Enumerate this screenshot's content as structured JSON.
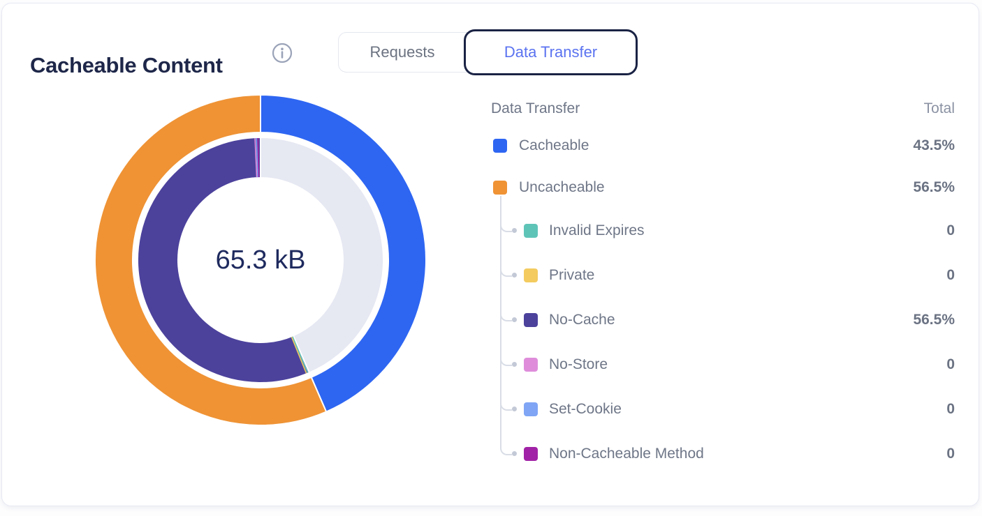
{
  "header": {
    "title": "Cacheable Content"
  },
  "tabs": [
    {
      "label": "Requests",
      "active": false
    },
    {
      "label": "Data Transfer",
      "active": true
    }
  ],
  "chart_data": {
    "type": "donut",
    "title": "Cacheable Content — Data Transfer",
    "center_label": "65.3 kB",
    "legend_position": "right",
    "rings": [
      {
        "name": "outer",
        "segments": [
          {
            "label": "Cacheable",
            "percent": 43.5,
            "color": "#2e66f2"
          },
          {
            "label": "Uncacheable",
            "percent": 56.5,
            "color": "#ef9335"
          }
        ]
      },
      {
        "name": "inner",
        "segments": [
          {
            "label": "Cacheable",
            "percent": 43.5,
            "color": "#e6e8f2"
          },
          {
            "label": "Invalid Expires",
            "percent": 0,
            "color": "#5fc4b8"
          },
          {
            "label": "Private",
            "percent": 0,
            "color": "#f3cb5f"
          },
          {
            "label": "No-Cache",
            "percent": 56.5,
            "color": "#4c429c"
          },
          {
            "label": "No-Store",
            "percent": 0,
            "color": "#df8ddb"
          },
          {
            "label": "Set-Cookie",
            "percent": 0,
            "color": "#7fa5f4"
          },
          {
            "label": "Non-Cacheable Method",
            "percent": 0,
            "color": "#a122a6"
          }
        ]
      }
    ]
  },
  "legend": {
    "header_label": "Data Transfer",
    "total_label": "Total",
    "items": [
      {
        "label": "Cacheable",
        "value": "43.5%",
        "color": "#2e66f2",
        "level": 0
      },
      {
        "label": "Uncacheable",
        "value": "56.5%",
        "color": "#ef9335",
        "level": 0
      },
      {
        "label": "Invalid Expires",
        "value": "0",
        "color": "#5fc4b8",
        "level": 1
      },
      {
        "label": "Private",
        "value": "0",
        "color": "#f3cb5f",
        "level": 1
      },
      {
        "label": "No-Cache",
        "value": "56.5%",
        "color": "#4c429c",
        "level": 1
      },
      {
        "label": "No-Store",
        "value": "0",
        "color": "#df8ddb",
        "level": 1
      },
      {
        "label": "Set-Cookie",
        "value": "0",
        "color": "#7fa5f4",
        "level": 1
      },
      {
        "label": "Non-Cacheable Method",
        "value": "0",
        "color": "#a122a6",
        "level": 1
      }
    ]
  },
  "colors": {
    "active_tab_border": "#1a2344",
    "active_tab_text": "#5b73f0",
    "title_text": "#1e2749",
    "center_text": "#1e2a5e"
  }
}
